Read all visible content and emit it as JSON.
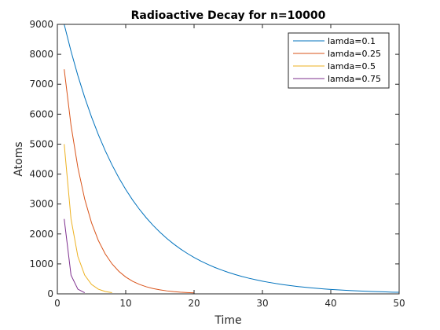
{
  "chart_data": {
    "type": "line",
    "title": "Radioactive Decay for n=10000",
    "xlabel": "Time",
    "ylabel": "Atoms",
    "xlim": [
      0,
      50
    ],
    "ylim": [
      0,
      9000
    ],
    "xticks": [
      0,
      10,
      20,
      30,
      40,
      50
    ],
    "yticks": [
      0,
      1000,
      2000,
      3000,
      4000,
      5000,
      6000,
      7000,
      8000,
      9000
    ],
    "grid": false,
    "legend_position": "top-right",
    "series": [
      {
        "name": "lamda=0.1",
        "color": "#0072BD",
        "x": [
          1,
          2,
          3,
          4,
          5,
          6,
          7,
          8,
          9,
          10,
          11,
          12,
          13,
          14,
          15,
          16,
          17,
          18,
          19,
          20,
          21,
          22,
          23,
          24,
          25,
          26,
          27,
          28,
          29,
          30,
          31,
          32,
          33,
          34,
          35,
          36,
          37,
          38,
          39,
          40,
          41,
          42,
          43,
          44,
          45,
          46,
          47,
          48,
          49,
          50
        ],
        "y": [
          9000,
          8100,
          7290,
          6561,
          5905,
          5314,
          4783,
          4305,
          3874,
          3487,
          3138,
          2824,
          2542,
          2288,
          2059,
          1853,
          1668,
          1501,
          1351,
          1216,
          1094,
          985,
          886,
          798,
          718,
          646,
          581,
          523,
          471,
          424,
          382,
          343,
          309,
          278,
          250,
          225,
          203,
          182,
          164,
          148,
          133,
          120,
          108,
          97,
          87,
          78,
          71,
          64,
          57,
          52
        ]
      },
      {
        "name": "lamda=0.25",
        "color": "#D95319",
        "x": [
          1,
          2,
          3,
          4,
          5,
          6,
          7,
          8,
          9,
          10,
          11,
          12,
          13,
          14,
          15,
          16,
          17,
          18,
          19,
          20
        ],
        "y": [
          7500,
          5625,
          4219,
          3164,
          2373,
          1780,
          1335,
          1001,
          751,
          563,
          422,
          317,
          238,
          178,
          134,
          100,
          75,
          56,
          42,
          32
        ]
      },
      {
        "name": "lamda=0.5",
        "color": "#EDB120",
        "x": [
          1,
          2,
          3,
          4,
          5,
          6,
          7,
          8
        ],
        "y": [
          5000,
          2500,
          1250,
          625,
          313,
          156,
          78,
          39
        ]
      },
      {
        "name": "lamda=0.75",
        "color": "#7E2F8E",
        "x": [
          1,
          2,
          3,
          4
        ],
        "y": [
          2500,
          625,
          156,
          39
        ]
      }
    ]
  }
}
